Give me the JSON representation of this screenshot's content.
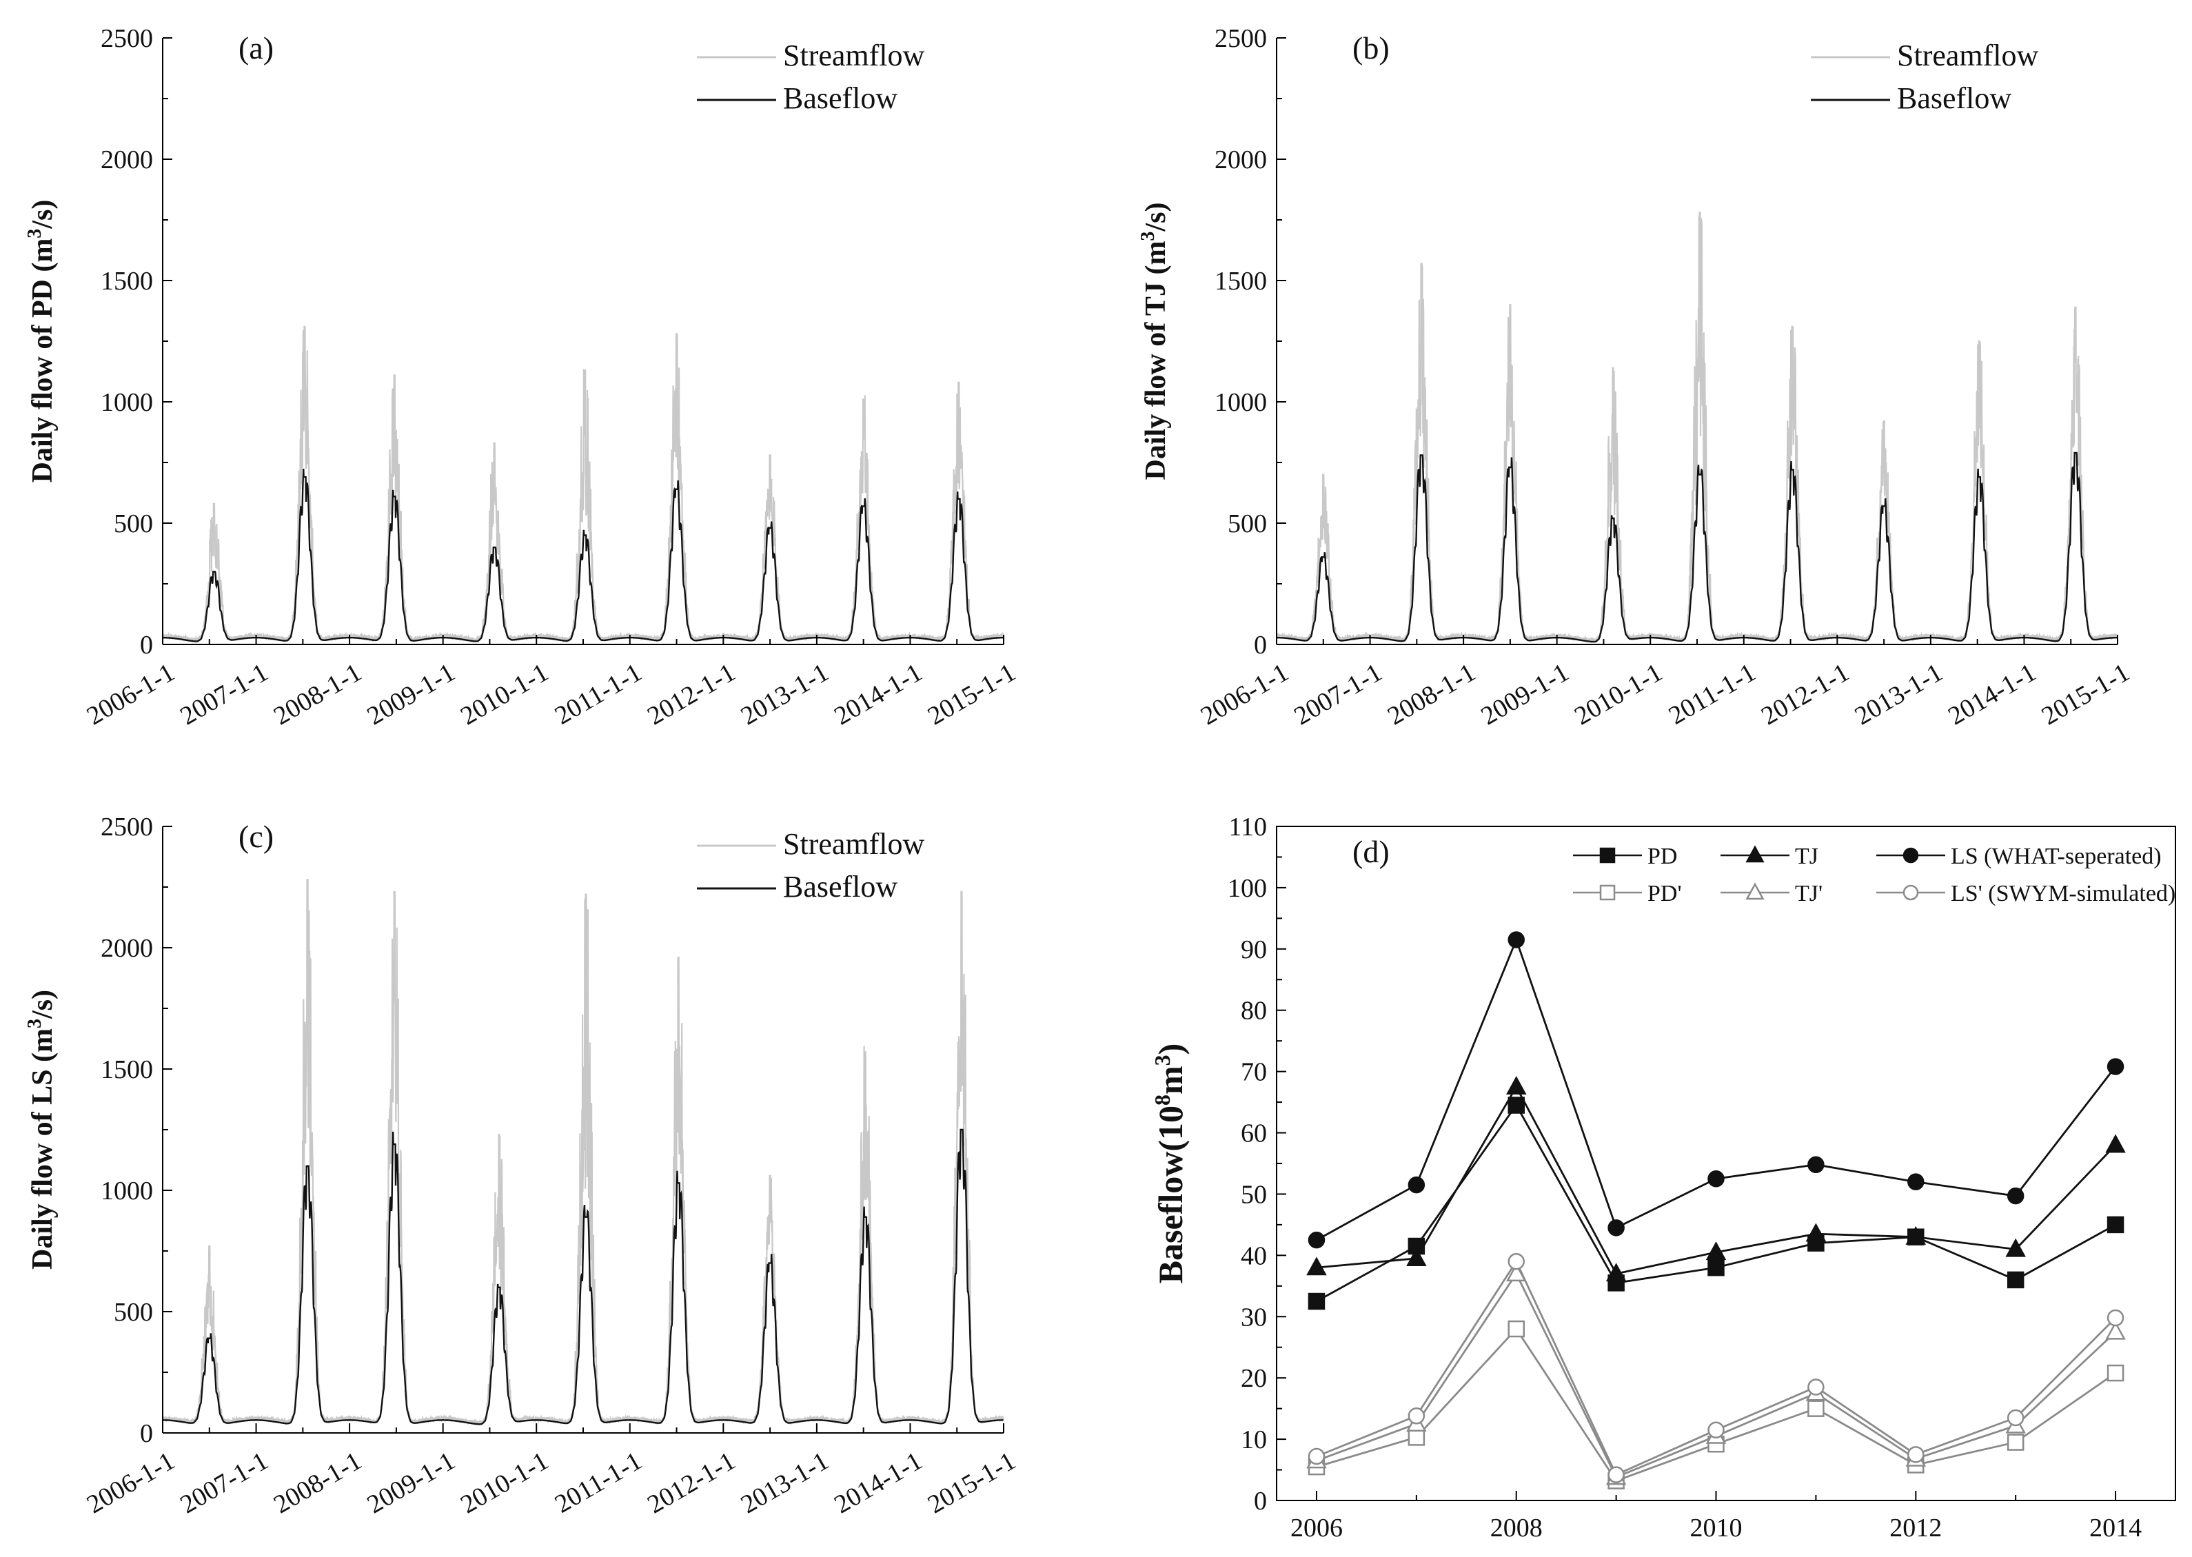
{
  "chart_data": [
    {
      "panel": "(a)",
      "type": "line",
      "ylabel_prefix": "Daily flow of PD",
      "ylabel_unit": "(m",
      "ylabel_sup": "3",
      "ylabel_end": "/s)",
      "ylim": [
        0,
        2500
      ],
      "yticks": [
        "0",
        "500",
        "1000",
        "1500",
        "2000",
        "2500"
      ],
      "xticks": [
        "2006-1-1",
        "2007-1-1",
        "2008-1-1",
        "2009-1-1",
        "2010-1-1",
        "2011-1-1",
        "2012-1-1",
        "2013-1-1",
        "2014-1-1",
        "2015-1-1"
      ],
      "legend": [
        "Streamflow",
        "Baseflow"
      ],
      "series_colors": {
        "streamflow": "#c8c8c8",
        "baseflow": "#111111"
      },
      "annual_peaks": [
        {
          "year": 2006,
          "stream": 580,
          "base": 300,
          "center": 0.55
        },
        {
          "year": 2007,
          "stream": 1310,
          "base": 690,
          "center": 0.52
        },
        {
          "year": 2008,
          "stream": 1110,
          "base": 610,
          "center": 0.48
        },
        {
          "year": 2009,
          "stream": 830,
          "base": 400,
          "center": 0.55
        },
        {
          "year": 2010,
          "stream": 1130,
          "base": 450,
          "center": 0.52
        },
        {
          "year": 2011,
          "stream": 1280,
          "base": 640,
          "center": 0.5
        },
        {
          "year": 2012,
          "stream": 780,
          "base": 480,
          "center": 0.5
        },
        {
          "year": 2013,
          "stream": 1010,
          "base": 570,
          "center": 0.5
        },
        {
          "year": 2014,
          "stream": 1080,
          "base": 600,
          "center": 0.52
        }
      ]
    },
    {
      "panel": "(b)",
      "type": "line",
      "ylabel_prefix": "Daily flow of TJ",
      "ylabel_unit": "(m",
      "ylabel_sup": "3",
      "ylabel_end": "/s)",
      "ylim": [
        0,
        2500
      ],
      "yticks": [
        "0",
        "500",
        "1000",
        "1500",
        "2000",
        "2500"
      ],
      "xticks": [
        "2006-1-1",
        "2007-1-1",
        "2008-1-1",
        "2009-1-1",
        "2010-1-1",
        "2011-1-1",
        "2012-1-1",
        "2013-1-1",
        "2014-1-1",
        "2015-1-1"
      ],
      "legend": [
        "Streamflow",
        "Baseflow"
      ],
      "series_colors": {
        "streamflow": "#c8c8c8",
        "baseflow": "#111111"
      },
      "annual_peaks": [
        {
          "year": 2006,
          "stream": 700,
          "base": 360,
          "center": 0.5
        },
        {
          "year": 2007,
          "stream": 1570,
          "base": 780,
          "center": 0.55
        },
        {
          "year": 2008,
          "stream": 1400,
          "base": 730,
          "center": 0.5
        },
        {
          "year": 2009,
          "stream": 1140,
          "base": 520,
          "center": 0.6
        },
        {
          "year": 2010,
          "stream": 1780,
          "base": 700,
          "center": 0.53
        },
        {
          "year": 2011,
          "stream": 1310,
          "base": 720,
          "center": 0.52
        },
        {
          "year": 2012,
          "stream": 920,
          "base": 570,
          "center": 0.5
        },
        {
          "year": 2013,
          "stream": 1250,
          "base": 690,
          "center": 0.52
        },
        {
          "year": 2014,
          "stream": 1390,
          "base": 790,
          "center": 0.55
        }
      ]
    },
    {
      "panel": "(c)",
      "type": "line",
      "ylabel_prefix": "Daily flow of LS",
      "ylabel_unit": "(m",
      "ylabel_sup": "3",
      "ylabel_end": "/s)",
      "ylim": [
        0,
        2500
      ],
      "yticks": [
        "0",
        "500",
        "1000",
        "1500",
        "2000",
        "2500"
      ],
      "xticks": [
        "2006-1-1",
        "2007-1-1",
        "2008-1-1",
        "2009-1-1",
        "2010-1-1",
        "2011-1-1",
        "2012-1-1",
        "2013-1-1",
        "2014-1-1",
        "2015-1-1"
      ],
      "legend": [
        "Streamflow",
        "Baseflow"
      ],
      "series_colors": {
        "streamflow": "#c8c8c8",
        "baseflow": "#111111"
      },
      "annual_peaks": [
        {
          "year": 2006,
          "stream": 770,
          "base": 390,
          "center": 0.5
        },
        {
          "year": 2007,
          "stream": 2280,
          "base": 1100,
          "center": 0.55
        },
        {
          "year": 2008,
          "stream": 2230,
          "base": 1190,
          "center": 0.48
        },
        {
          "year": 2009,
          "stream": 1230,
          "base": 600,
          "center": 0.6
        },
        {
          "year": 2010,
          "stream": 2220,
          "base": 890,
          "center": 0.53
        },
        {
          "year": 2011,
          "stream": 1960,
          "base": 1030,
          "center": 0.52
        },
        {
          "year": 2012,
          "stream": 1060,
          "base": 700,
          "center": 0.5
        },
        {
          "year": 2013,
          "stream": 1570,
          "base": 890,
          "center": 0.52
        },
        {
          "year": 2014,
          "stream": 2230,
          "base": 1250,
          "center": 0.55
        }
      ]
    },
    {
      "panel": "(d)",
      "type": "line",
      "ylabel": "Baseflow(10",
      "ylabel_sup": "8",
      "ylabel_mid": "m",
      "ylabel_sup2": "3",
      "ylabel_end": ")",
      "ylim": [
        0,
        110
      ],
      "xlim": [
        2005.6,
        2014.6
      ],
      "yticks": [
        "0",
        "10",
        "20",
        "30",
        "40",
        "50",
        "60",
        "70",
        "80",
        "90",
        "100",
        "110"
      ],
      "xticks": [
        "2006",
        "2008",
        "2010",
        "2012",
        "2014"
      ],
      "x": [
        2006,
        2007,
        2008,
        2009,
        2010,
        2011,
        2012,
        2013,
        2014
      ],
      "legend_row1": [
        "PD",
        "TJ",
        "LS (WHAT-seperated)"
      ],
      "legend_row2": [
        "PD'",
        "TJ'",
        "LS' (SWYM-simulated)"
      ],
      "series": [
        {
          "name": "PD",
          "marker": "square-filled",
          "color": "#111111",
          "values": [
            32.5,
            41.5,
            64.5,
            35.5,
            38.0,
            42.0,
            43.0,
            36.0,
            45.0
          ]
        },
        {
          "name": "TJ",
          "marker": "triangle-filled",
          "color": "#111111",
          "values": [
            38.0,
            39.5,
            67.5,
            37.0,
            40.5,
            43.5,
            43.0,
            41.0,
            58.0
          ]
        },
        {
          "name": "LS",
          "marker": "circle-filled",
          "color": "#111111",
          "values": [
            42.5,
            51.5,
            91.5,
            44.5,
            52.5,
            54.8,
            52.0,
            49.7,
            70.8
          ]
        },
        {
          "name": "PD'",
          "marker": "square-open",
          "color": "#8a8a8a",
          "values": [
            5.5,
            10.3,
            28.0,
            3.2,
            9.2,
            15.0,
            5.8,
            9.5,
            20.8
          ]
        },
        {
          "name": "TJ'",
          "marker": "triangle-open",
          "color": "#8a8a8a",
          "values": [
            6.5,
            12.5,
            37.0,
            3.8,
            10.5,
            17.5,
            6.8,
            12.2,
            27.5
          ]
        },
        {
          "name": "LS'",
          "marker": "circle-open",
          "color": "#8a8a8a",
          "values": [
            7.2,
            13.8,
            39.0,
            4.2,
            11.5,
            18.5,
            7.5,
            13.5,
            29.8
          ]
        }
      ]
    }
  ]
}
